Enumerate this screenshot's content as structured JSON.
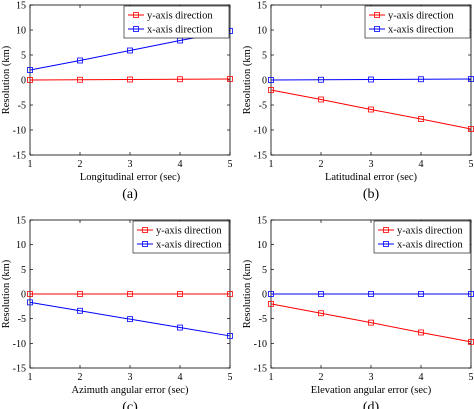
{
  "chart_data": [
    {
      "panel_label": "(a)",
      "type": "line",
      "x": [
        1,
        2,
        3,
        4,
        5
      ],
      "xlabel": "Longitudinal error  (sec)",
      "ylabel": "Resolution  (km)",
      "xlim": [
        1,
        5
      ],
      "ylim": [
        -15,
        15
      ],
      "xticks": [
        1,
        2,
        3,
        4,
        5
      ],
      "yticks": [
        15,
        10,
        5,
        0,
        -5,
        -10,
        -15
      ],
      "legend_position": "top-right",
      "series": [
        {
          "name": "y-axis direction",
          "color": "#ff0000",
          "values": [
            0,
            0.05,
            0.1,
            0.15,
            0.2
          ]
        },
        {
          "name": "x-axis direction",
          "color": "#0000ff",
          "values": [
            2,
            3.9,
            5.9,
            7.9,
            9.8
          ]
        }
      ]
    },
    {
      "panel_label": "(b)",
      "type": "line",
      "x": [
        1,
        2,
        3,
        4,
        5
      ],
      "xlabel": "Latitudinal  error  (sec)",
      "ylabel": "Resolution  (km)",
      "xlim": [
        1,
        5
      ],
      "ylim": [
        -15,
        15
      ],
      "xticks": [
        1,
        2,
        3,
        4,
        5
      ],
      "yticks": [
        15,
        10,
        5,
        0,
        -5,
        -10,
        -15
      ],
      "legend_position": "top-right",
      "series": [
        {
          "name": "y-axis direction",
          "color": "#ff0000",
          "values": [
            -2,
            -3.9,
            -5.9,
            -7.8,
            -9.8
          ]
        },
        {
          "name": "x-axis direction",
          "color": "#0000ff",
          "values": [
            0,
            0.05,
            0.1,
            0.15,
            0.2
          ]
        }
      ]
    },
    {
      "panel_label": "(c)",
      "type": "line",
      "x": [
        1,
        2,
        3,
        4,
        5
      ],
      "xlabel": "Azimuth angular error  (sec)",
      "ylabel": "Resolution  (km)",
      "xlim": [
        1,
        5
      ],
      "ylim": [
        -15,
        15
      ],
      "xticks": [
        1,
        2,
        3,
        4,
        5
      ],
      "yticks": [
        15,
        10,
        5,
        0,
        -5,
        -10,
        -15
      ],
      "legend_position": "top-right",
      "series": [
        {
          "name": "y-axis direction",
          "color": "#ff0000",
          "values": [
            0,
            0,
            0,
            0,
            0
          ]
        },
        {
          "name": "x-axis direction",
          "color": "#0000ff",
          "values": [
            -1.7,
            -3.4,
            -5.1,
            -6.8,
            -8.5
          ]
        }
      ]
    },
    {
      "panel_label": "(d)",
      "type": "line",
      "x": [
        1,
        2,
        3,
        4,
        5
      ],
      "xlabel": "Elevation angular error  (sec)",
      "ylabel": "Resolution  (km)",
      "xlim": [
        1,
        5
      ],
      "ylim": [
        -15,
        15
      ],
      "xticks": [
        1,
        2,
        3,
        4,
        5
      ],
      "yticks": [
        15,
        10,
        5,
        0,
        -5,
        -10,
        -15
      ],
      "legend_position": "top-right",
      "series": [
        {
          "name": "y-axis direction",
          "color": "#ff0000",
          "values": [
            -2,
            -3.9,
            -5.8,
            -7.8,
            -9.7
          ]
        },
        {
          "name": "x-axis direction",
          "color": "#0000ff",
          "values": [
            0,
            0,
            0,
            0,
            0
          ]
        }
      ]
    }
  ]
}
